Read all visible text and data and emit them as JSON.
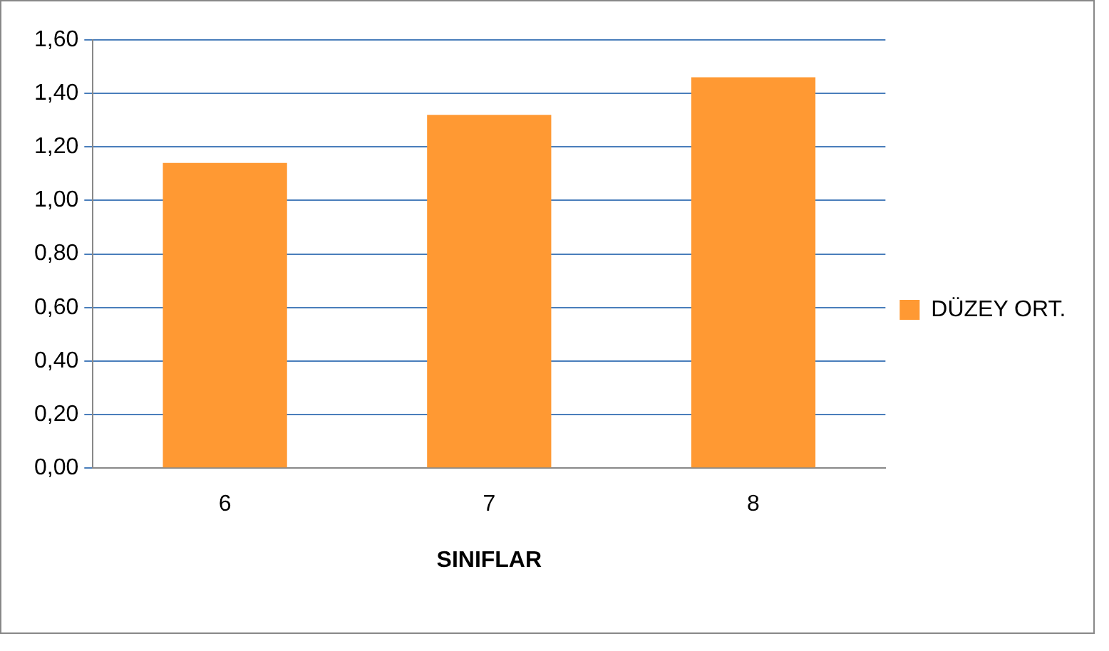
{
  "chart_data": {
    "type": "bar",
    "xlabel": "SINIFLAR",
    "categories": [
      "6",
      "7",
      "8"
    ],
    "series": [
      {
        "name": "DÜZEY ORT.",
        "color": "#ff9933",
        "values": [
          1.14,
          1.32,
          1.46
        ]
      }
    ],
    "ylim": [
      0,
      1.6
    ],
    "yticks": [
      {
        "value": 0,
        "label": "0,00"
      },
      {
        "value": 0.2,
        "label": "0,20"
      },
      {
        "value": 0.4,
        "label": "0,40"
      },
      {
        "value": 0.6,
        "label": "0,60"
      },
      {
        "value": 0.8,
        "label": "0,80"
      },
      {
        "value": 1,
        "label": "1,00"
      },
      {
        "value": 1.2,
        "label": "1,20"
      },
      {
        "value": 1.4,
        "label": "1,40"
      },
      {
        "value": 1.6,
        "label": "1,60"
      }
    ],
    "grid": "y",
    "legend": "right"
  }
}
